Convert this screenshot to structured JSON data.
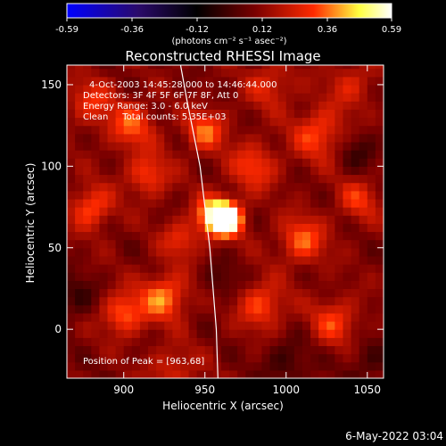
{
  "chart_data": {
    "type": "heatmap",
    "title": "Reconstructed RHESSI Image",
    "xlabel": "Heliocentric X (arcsec)",
    "ylabel": "Heliocentric Y (arcsec)",
    "xlim": [
      865,
      1060
    ],
    "ylim": [
      -30,
      162
    ],
    "x_ticks": [
      900,
      950,
      1000,
      1050
    ],
    "y_ticks": [
      0,
      50,
      100,
      150
    ],
    "grid": false,
    "colorbar": {
      "min": -0.59,
      "max": 0.59,
      "tick_labels": [
        "-0.59",
        "-0.36",
        "-0.12",
        "0.12",
        "0.36",
        "0.59"
      ],
      "unit_label": "(photons cm⁻² s⁻¹ asec⁻²)",
      "colors": [
        "#0000ff",
        "#2a0a6a",
        "#000000",
        "#7a0000",
        "#ff2a00",
        "#ffff40",
        "#ffffff"
      ]
    },
    "annotations": {
      "time_range": "4-Oct-2003 14:45:28.000 to 14:46:44.000",
      "detectors": "Detectors: 3F 4F 5F 6F 7F 8F, Att 0",
      "energy": "Energy Range: 3.0 - 6.0 keV",
      "clean": "Clean     Total counts: 5.35E+03",
      "peak_text": "Position of Peak = [963,68]"
    },
    "peak": {
      "x": 963,
      "y": 68,
      "value": 0.59
    },
    "limb_curve": [
      [
        958,
        -30
      ],
      [
        957,
        0
      ],
      [
        953,
        50
      ],
      [
        947,
        100
      ],
      [
        939,
        140
      ],
      [
        935,
        162
      ]
    ],
    "blobs": [
      {
        "x": 963,
        "y": 68,
        "v": 0.59,
        "s": 7
      },
      {
        "x": 955,
        "y": 70,
        "v": 0.4,
        "s": 8
      },
      {
        "x": 880,
        "y": 75,
        "v": 0.3,
        "s": 9
      },
      {
        "x": 905,
        "y": 125,
        "v": 0.28,
        "s": 10
      },
      {
        "x": 950,
        "y": 122,
        "v": 0.3,
        "s": 9
      },
      {
        "x": 1010,
        "y": 55,
        "v": 0.3,
        "s": 10
      },
      {
        "x": 1020,
        "y": 120,
        "v": 0.28,
        "s": 11
      },
      {
        "x": 925,
        "y": 20,
        "v": 0.35,
        "s": 10
      },
      {
        "x": 900,
        "y": 10,
        "v": 0.32,
        "s": 9
      },
      {
        "x": 985,
        "y": 15,
        "v": 0.28,
        "s": 10
      },
      {
        "x": 1030,
        "y": 5,
        "v": 0.25,
        "s": 10
      },
      {
        "x": 915,
        "y": 95,
        "v": 0.27,
        "s": 9
      },
      {
        "x": 980,
        "y": 100,
        "v": 0.26,
        "s": 10
      },
      {
        "x": 1045,
        "y": 80,
        "v": 0.22,
        "s": 9
      },
      {
        "x": 935,
        "y": 55,
        "v": 0.22,
        "s": 8
      },
      {
        "x": 880,
        "y": 140,
        "v": 0.22,
        "s": 10
      },
      {
        "x": 990,
        "y": 150,
        "v": 0.2,
        "s": 10
      },
      {
        "x": 1040,
        "y": 150,
        "v": 0.18,
        "s": 10
      },
      {
        "x": 870,
        "y": 20,
        "v": -0.15,
        "s": 9
      },
      {
        "x": 1000,
        "y": -20,
        "v": -0.15,
        "s": 10
      },
      {
        "x": 1050,
        "y": -20,
        "v": -0.12,
        "s": 10
      },
      {
        "x": 960,
        "y": 30,
        "v": -0.12,
        "s": 8
      },
      {
        "x": 1045,
        "y": 110,
        "v": -0.14,
        "s": 9
      },
      {
        "x": 930,
        "y": -25,
        "v": 0.18,
        "s": 10
      }
    ]
  },
  "footer": {
    "date": "6-May-2022 03:04"
  }
}
